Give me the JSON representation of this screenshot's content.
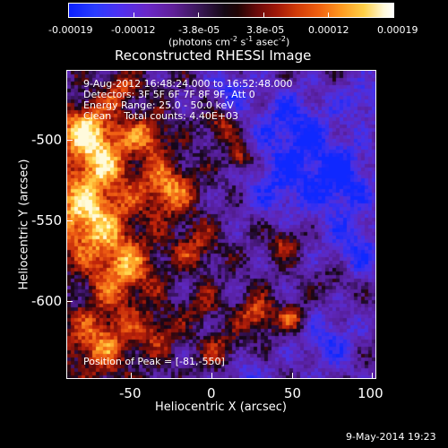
{
  "colorbar": {
    "tick_labels": [
      "-0.00019",
      "-0.00012",
      "-3.8e-05",
      "3.8e-05",
      "0.00012",
      "0.00019"
    ],
    "units_text": "(photons cm",
    "units_exp1": "-2",
    "units_mid": " s",
    "units_exp2": "-1",
    "units_mid2": " asec",
    "units_exp3": "-2",
    "units_end": ")"
  },
  "image": {
    "title": "Reconstructed RHESSI Image",
    "time_range": "9-Aug-2012 16:48:24.000 to 16:52:48.000",
    "detectors": "Detectors: 3F 5F 6F 7F 8F 9F, Att 0",
    "energy_range": "Energy Range: 25.0 - 50.0 keV",
    "clean": "Clean    Total counts: 4.40E+03",
    "peak": "Position of Peak = [-81,-550]",
    "xlabel": "Heliocentric X (arcsec)",
    "ylabel": "Heliocentric Y (arcsec)",
    "x_ticks": [
      "-50",
      "0",
      "50",
      "100"
    ],
    "y_ticks": [
      "-500",
      "-550",
      "-600"
    ],
    "footer_date": "9-May-2014 19:23"
  }
}
